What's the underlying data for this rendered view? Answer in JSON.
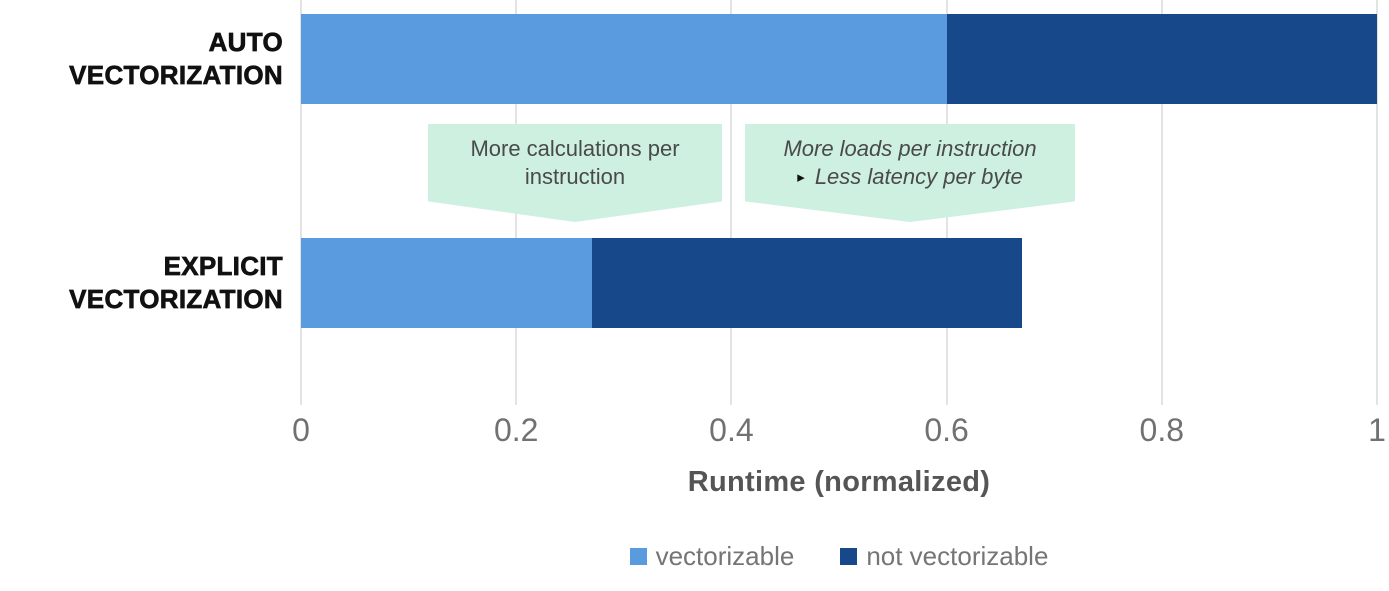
{
  "chart_data": {
    "type": "bar",
    "orientation": "horizontal",
    "stacked": true,
    "title": "",
    "xlabel": "Runtime (normalized)",
    "ylabel": "",
    "xlim": [
      0,
      1
    ],
    "xtick_values": [
      0,
      0.2,
      0.4,
      0.6,
      0.8,
      1
    ],
    "xtick_labels": [
      "0",
      "0.2",
      "0.4",
      "0.6",
      "0.8",
      "1"
    ],
    "categories": [
      "AUTO VECTORIZATION",
      "EXPLICIT VECTORIZATION"
    ],
    "series": [
      {
        "name": "vectorizable",
        "color": "#5A9BDF",
        "values": [
          0.6,
          0.27
        ]
      },
      {
        "name": "not vectorizable",
        "color": "#17488A",
        "values": [
          0.4,
          0.4
        ]
      }
    ],
    "grid": true,
    "legend_position": "bottom"
  },
  "annotations": {
    "calc": {
      "line1": "More calculations per",
      "line2": "instruction"
    },
    "loads": {
      "line1": "More loads per instruction",
      "bullet": "▸",
      "line2": "Less latency per byte"
    }
  },
  "colors": {
    "callout_bg": "#CDF0E0",
    "callout_text": "#4A4A4A",
    "grid": "#E3E3E3",
    "tick_text": "#717171",
    "axis_title": "#555555",
    "legend_text": "#757575",
    "category_text": "#111111",
    "series_vectorizable": "#5A9BDF",
    "series_not_vectorizable": "#17488A"
  }
}
